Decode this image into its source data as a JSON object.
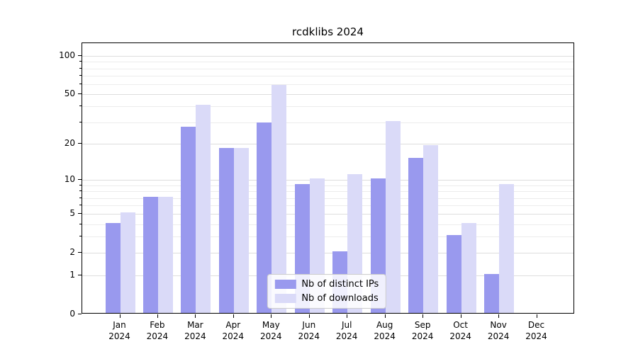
{
  "title": "rcdklibs 2024",
  "chart_data": {
    "type": "bar",
    "title": "rcdklibs 2024",
    "categories": [
      "Jan",
      "Feb",
      "Mar",
      "Apr",
      "May",
      "Jun",
      "Jul",
      "Aug",
      "Sep",
      "Oct",
      "Nov",
      "Dec"
    ],
    "x_year": "2024",
    "series": [
      {
        "name": "Nb of distinct IPs",
        "color": "#9999ee",
        "values": [
          4,
          7,
          27,
          18,
          29,
          9,
          2,
          10,
          15,
          3,
          1,
          0
        ]
      },
      {
        "name": "Nb of downloads",
        "color": "#dadaf8",
        "values": [
          5,
          7,
          40,
          18,
          58,
          10,
          11,
          30,
          19,
          4,
          9,
          0
        ]
      }
    ],
    "y_ticks": [
      0,
      1,
      2,
      5,
      10,
      20,
      50,
      100
    ],
    "y_minor_ticks": [
      3,
      4,
      6,
      7,
      8,
      9,
      30,
      40,
      60,
      70,
      80,
      90
    ],
    "y_scale": "log1p",
    "ylim": [
      0,
      126
    ],
    "grid": true,
    "legend_position": "bottom-center",
    "grid_major_color": "#dedede",
    "grid_minor_color": "#ececec",
    "axis_color": "#000000"
  }
}
